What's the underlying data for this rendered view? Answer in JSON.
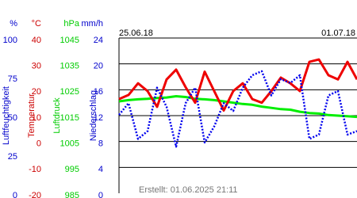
{
  "chart_data": {
    "type": "line",
    "date_start": "25.06.18",
    "date_end": "01.07.18",
    "footer": "Erstellt: 01.06.2025 21:11",
    "grid": true,
    "axes": [
      {
        "unit": "%",
        "label": "Luftfeuchtigkeit",
        "color": "#0000cc",
        "ylim": [
          0,
          100
        ],
        "yticks": [
          0,
          25,
          50,
          75,
          100
        ]
      },
      {
        "unit": "°C",
        "label": "Temperatur",
        "color": "#cc0000",
        "ylim": [
          -20,
          40
        ],
        "yticks": [
          -20,
          -10,
          0,
          10,
          20,
          30,
          40
        ]
      },
      {
        "unit": "hPa",
        "label": "Luftdruck",
        "color": "#00cc00",
        "ylim": [
          985,
          1045
        ],
        "yticks": [
          985,
          995,
          1005,
          1015,
          1025,
          1035,
          1045
        ]
      },
      {
        "unit": "mm/h",
        "label": "Niederschlag",
        "color": "#0000cc",
        "ylim": [
          0,
          24
        ],
        "yticks": [
          0,
          4,
          8,
          12,
          16,
          20,
          24
        ]
      }
    ],
    "series": [
      {
        "axis": 2,
        "color": "#00ee00",
        "style": "solid",
        "values": [
          1020.5,
          1021,
          1021.3,
          1021.5,
          1021.8,
          1022,
          1022.5,
          1022.2,
          1021.5,
          1021.3,
          1021,
          1020.5,
          1020,
          1019.5,
          1019.2,
          1018.5,
          1018,
          1017.5,
          1017.3,
          1016.5,
          1016,
          1015.8,
          1015.2,
          1015,
          1014.8,
          1014.5
        ]
      },
      {
        "axis": 1,
        "color": "#ee0000",
        "style": "solid",
        "values": [
          16.4,
          18,
          22.5,
          19.5,
          13.4,
          24,
          27.8,
          21,
          15,
          27,
          19.5,
          12,
          19.5,
          22.5,
          16.4,
          15,
          19.5,
          24.7,
          22.5,
          19.5,
          30.8,
          31.7,
          25.6,
          24,
          30.8,
          24
        ]
      },
      {
        "axis": 0,
        "color": "#0000ee",
        "style": "dotted",
        "values": [
          50.5,
          58,
          35,
          40,
          68,
          55.6,
          30,
          58,
          68,
          32.7,
          43,
          58,
          53,
          68,
          76,
          78.6,
          63,
          73.5,
          71,
          76,
          35,
          37.8,
          63,
          65.8,
          37.8,
          40
        ]
      }
    ]
  }
}
